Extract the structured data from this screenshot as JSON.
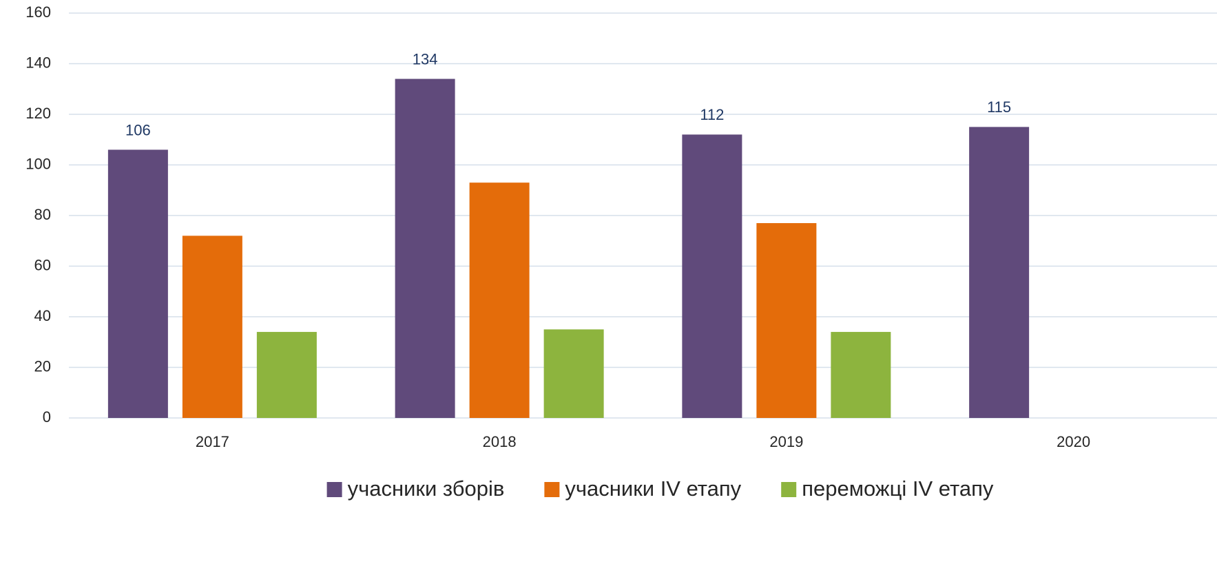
{
  "chart_data": {
    "type": "bar",
    "categories": [
      "2017",
      "2018",
      "2019",
      "2020"
    ],
    "series": [
      {
        "name": "учасники зборів",
        "color": "#604a7b",
        "values": [
          106,
          134,
          112,
          115
        ],
        "data_labels": true
      },
      {
        "name": "учасники IV етапу",
        "color": "#e46c0a",
        "values": [
          72,
          93,
          77,
          null
        ]
      },
      {
        "name": "переможці IV етапу",
        "color": "#8db43e",
        "values": [
          34,
          35,
          34,
          null
        ]
      }
    ],
    "ylim": [
      0,
      160
    ],
    "yticks": [
      0,
      20,
      40,
      60,
      80,
      100,
      120,
      140,
      160
    ],
    "grid": true,
    "legend": "bottom"
  }
}
